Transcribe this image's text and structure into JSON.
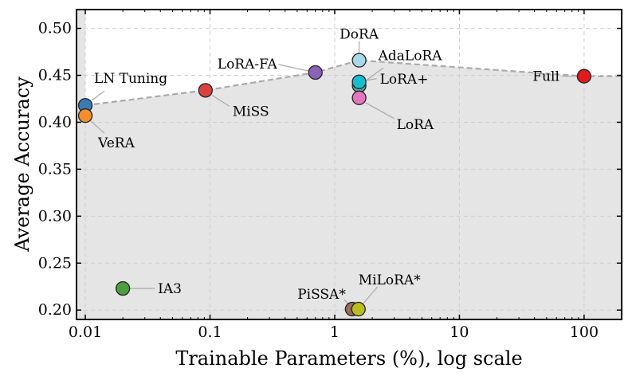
{
  "chart_data": {
    "type": "scatter",
    "title": "",
    "xlabel": "Trainable Parameters (%), log scale",
    "ylabel": "Average Accuracy",
    "xscale": "log",
    "xlim": [
      0.0085,
      200
    ],
    "ylim": [
      0.19,
      0.52
    ],
    "xticks": [
      {
        "value": 0.01,
        "label": "0.01"
      },
      {
        "value": 0.1,
        "label": "0.1"
      },
      {
        "value": 1,
        "label": "1"
      },
      {
        "value": 10,
        "label": "10"
      },
      {
        "value": 100,
        "label": "100"
      }
    ],
    "yticks": [
      {
        "value": 0.2,
        "label": "0.20"
      },
      {
        "value": 0.25,
        "label": "0.25"
      },
      {
        "value": 0.3,
        "label": "0.30"
      },
      {
        "value": 0.35,
        "label": "0.35"
      },
      {
        "value": 0.4,
        "label": "0.40"
      },
      {
        "value": 0.45,
        "label": "0.45"
      },
      {
        "value": 0.5,
        "label": "0.50"
      }
    ],
    "grid": true,
    "points": [
      {
        "name": "LN Tuning",
        "x": 0.01,
        "y": 0.418,
        "color": "#3b7bb5"
      },
      {
        "name": "VeRA",
        "x": 0.01,
        "y": 0.407,
        "color": "#f28e2b"
      },
      {
        "name": "MiSS",
        "x": 0.092,
        "y": 0.434,
        "color": "#d9413f"
      },
      {
        "name": "LoRA-FA",
        "x": 0.7,
        "y": 0.453,
        "color": "#8c62b8"
      },
      {
        "name": "DoRA",
        "x": 1.57,
        "y": 0.466,
        "color": "#a8d8ea"
      },
      {
        "name": "AdaLoRA",
        "x": 1.57,
        "y": 0.439,
        "color": "#5fa5a5"
      },
      {
        "name": "LoRA+",
        "x": 1.57,
        "y": 0.443,
        "color": "#17becf"
      },
      {
        "name": "LoRA",
        "x": 1.57,
        "y": 0.426,
        "color": "#e377c2"
      },
      {
        "name": "Full",
        "x": 100,
        "y": 0.449,
        "color": "#e31a1c"
      },
      {
        "name": "IA3",
        "x": 0.02,
        "y": 0.223,
        "color": "#4c9e3f"
      },
      {
        "name": "PiSSA*",
        "x": 1.38,
        "y": 0.201,
        "color": "#9a6b5e"
      },
      {
        "name": "MiLoRA*",
        "x": 1.55,
        "y": 0.201,
        "color": "#bcbd22"
      }
    ],
    "frontier": {
      "style": "dashed",
      "color": "#aaaaaa",
      "points": [
        {
          "x": 0.01,
          "y": 0.418
        },
        {
          "x": 0.092,
          "y": 0.434
        },
        {
          "x": 0.7,
          "y": 0.453
        },
        {
          "x": 1.57,
          "y": 0.466
        },
        {
          "x": 100,
          "y": 0.449
        },
        {
          "x": 200,
          "y": 0.449
        }
      ]
    },
    "shaded_region": "below frontier",
    "highlight_color": "#e31a1c"
  }
}
